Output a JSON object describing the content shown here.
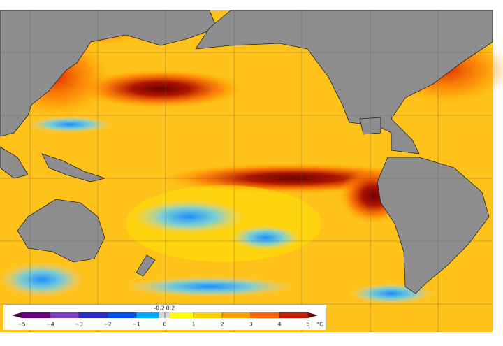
{
  "colorbar": {
    "labels": [
      "−5",
      "−4",
      "−3",
      "−2",
      "−1",
      "0",
      "1",
      "2",
      "3",
      "4",
      "5"
    ],
    "minor_labels": [
      "-0.2",
      "0.2"
    ],
    "unit": "°C"
  }
}
